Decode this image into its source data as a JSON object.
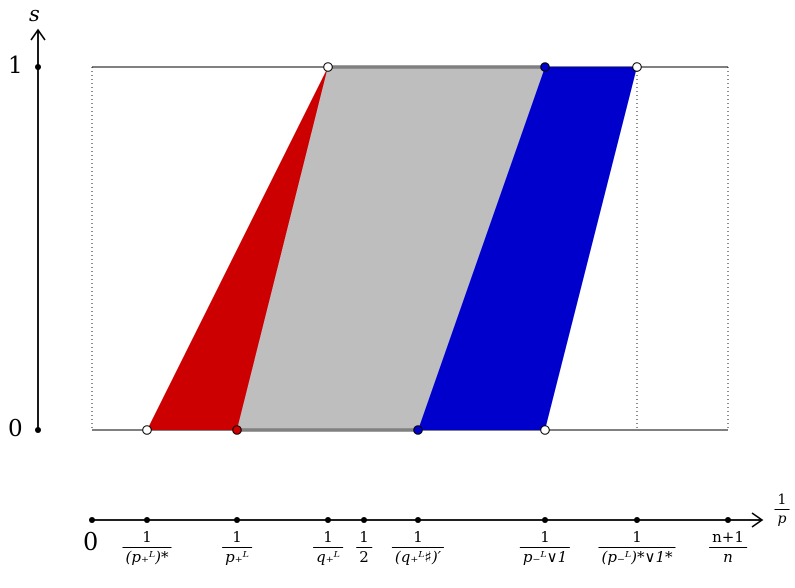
{
  "axes": {
    "vertical_label": "s",
    "horizontal_label_num": "1",
    "horizontal_label_den": "p",
    "s_ticks": [
      "0",
      "1"
    ],
    "origin_label": "0"
  },
  "ticks": [
    {
      "num": "1",
      "den": "(p₊ᴸ)*"
    },
    {
      "num": "1",
      "den": "p₊ᴸ"
    },
    {
      "num": "1",
      "den": "q₊ᴸ"
    },
    {
      "num": "1",
      "den": "2"
    },
    {
      "num": "1",
      "den": "(q₊ᴸ♯)′"
    },
    {
      "num": "1",
      "den": "p₋ᴸ∨1"
    },
    {
      "num": "1",
      "den": "(p₋ᴸ)*∨1*"
    },
    {
      "num": "n+1",
      "den": "n"
    }
  ],
  "regions": {
    "red": "#cc0000",
    "gray": "#bebebe",
    "blue": "#0000cc",
    "edge": "#808080"
  }
}
